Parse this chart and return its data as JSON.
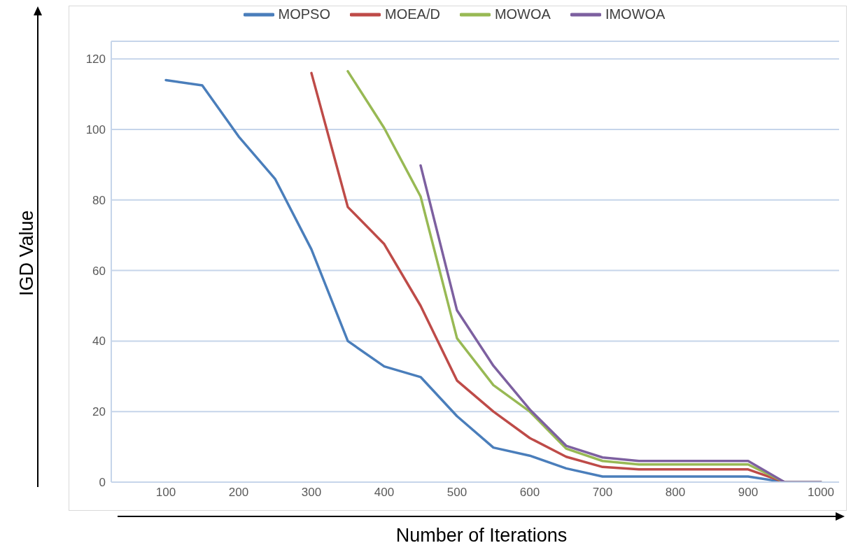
{
  "chart_data": {
    "type": "line",
    "xlabel": "Number of Iterations",
    "ylabel": "IGD Value",
    "x": [
      100,
      150,
      200,
      250,
      300,
      350,
      400,
      450,
      500,
      550,
      600,
      650,
      700,
      750,
      800,
      850,
      900,
      950,
      1000
    ],
    "series": [
      {
        "name": "MOPSO",
        "color": "#4a7ebb",
        "values": [
          114,
          112.5,
          98,
          86,
          66,
          40,
          32.8,
          29.8,
          18.7,
          9.8,
          7.5,
          3.9,
          1.6,
          1.6,
          1.6,
          1.6,
          1.6,
          0,
          0
        ]
      },
      {
        "name": "MOEA/D",
        "color": "#be4b48",
        "values": [
          null,
          null,
          null,
          null,
          116,
          78,
          67.5,
          50,
          28.8,
          20,
          12.5,
          7.2,
          4.3,
          3.6,
          3.6,
          3.6,
          3.6,
          0,
          0
        ]
      },
      {
        "name": "MOWOA",
        "color": "#98b954",
        "values": [
          null,
          null,
          null,
          null,
          null,
          116.5,
          100.4,
          81,
          40.8,
          27.5,
          20,
          9.5,
          6,
          5,
          5,
          5,
          5,
          0,
          0
        ]
      },
      {
        "name": "IMOWOA",
        "color": "#7d60a0",
        "values": [
          null,
          null,
          null,
          null,
          null,
          null,
          null,
          89.8,
          48.7,
          33,
          20.6,
          10.3,
          7,
          6,
          6,
          6,
          6,
          0,
          0
        ]
      }
    ],
    "xlim": [
      25,
      1025
    ],
    "xticks": [
      100,
      200,
      300,
      400,
      500,
      600,
      700,
      800,
      900,
      1000
    ],
    "ylim": [
      0,
      125
    ],
    "yticks": [
      0,
      20,
      40,
      60,
      80,
      100,
      120
    ],
    "grid": "y",
    "legend": "top",
    "marker": "none",
    "line_style": "solid"
  }
}
